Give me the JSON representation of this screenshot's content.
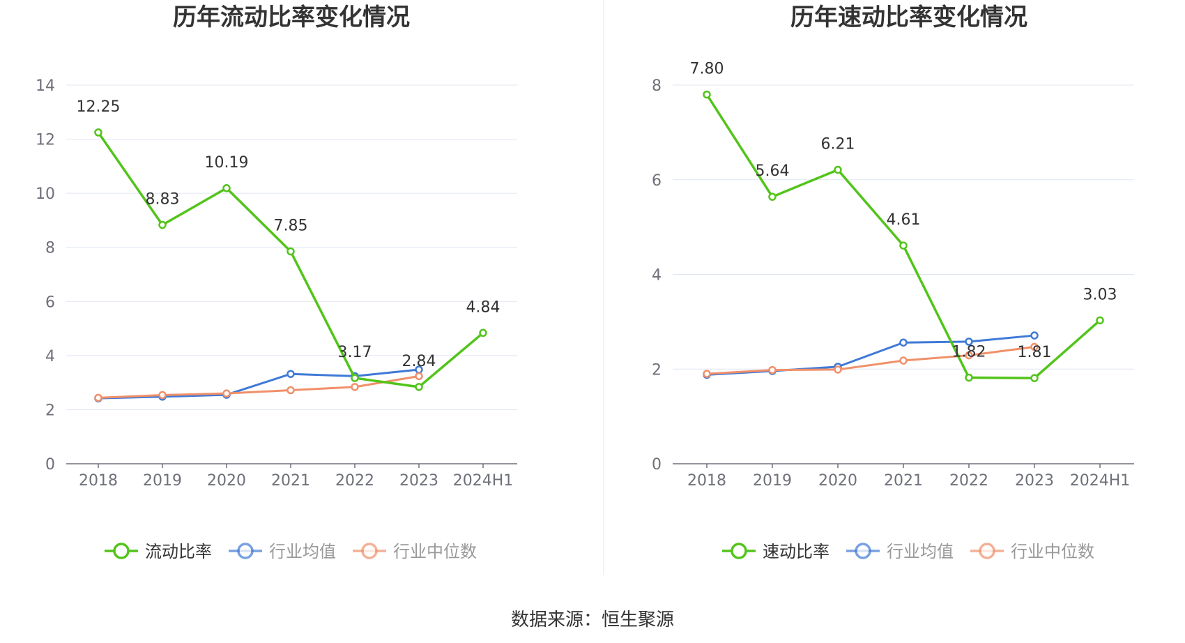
{
  "chart_data": [
    {
      "type": "line",
      "title": "历年流动比率变化情况",
      "categories": [
        "2018",
        "2019",
        "2020",
        "2021",
        "2022",
        "2023",
        "2024H1"
      ],
      "ylim": [
        0,
        14
      ],
      "yticks": [
        "0",
        "2",
        "4",
        "6",
        "8",
        "10",
        "12",
        "14"
      ],
      "grid": true,
      "legend_position": "bottom",
      "series": [
        {
          "name": "流动比率",
          "color": "#52c41a",
          "values": [
            12.25,
            8.83,
            10.19,
            7.85,
            3.17,
            2.84,
            4.84
          ],
          "labels": [
            "12.25",
            "8.83",
            "10.19",
            "7.85",
            "3.17",
            "2.84",
            "4.84"
          ]
        },
        {
          "name": "行业均值",
          "color": "#3f79d6",
          "values": [
            2.42,
            2.48,
            2.55,
            3.32,
            3.24,
            3.48,
            null
          ]
        },
        {
          "name": "行业中位数",
          "color": "#f0906a",
          "values": [
            2.44,
            2.54,
            2.6,
            2.72,
            2.84,
            3.24,
            null
          ]
        }
      ]
    },
    {
      "type": "line",
      "title": "历年速动比率变化情况",
      "categories": [
        "2018",
        "2019",
        "2020",
        "2021",
        "2022",
        "2023",
        "2024H1"
      ],
      "ylim": [
        0,
        8
      ],
      "yticks": [
        "0",
        "2",
        "4",
        "6",
        "8"
      ],
      "grid": true,
      "legend_position": "bottom",
      "series": [
        {
          "name": "速动比率",
          "color": "#52c41a",
          "values": [
            7.8,
            5.64,
            6.21,
            4.61,
            1.82,
            1.81,
            3.03
          ],
          "labels": [
            "7.80",
            "5.64",
            "6.21",
            "4.61",
            "1.82",
            "1.81",
            "3.03"
          ]
        },
        {
          "name": "行业均值",
          "color": "#3f79d6",
          "values": [
            1.88,
            1.96,
            2.05,
            2.56,
            2.58,
            2.71,
            null
          ]
        },
        {
          "name": "行业中位数",
          "color": "#f0906a",
          "values": [
            1.9,
            1.98,
            1.99,
            2.18,
            2.29,
            2.47,
            null
          ]
        }
      ]
    }
  ],
  "footer": {
    "source": "数据来源：恒生聚源"
  }
}
